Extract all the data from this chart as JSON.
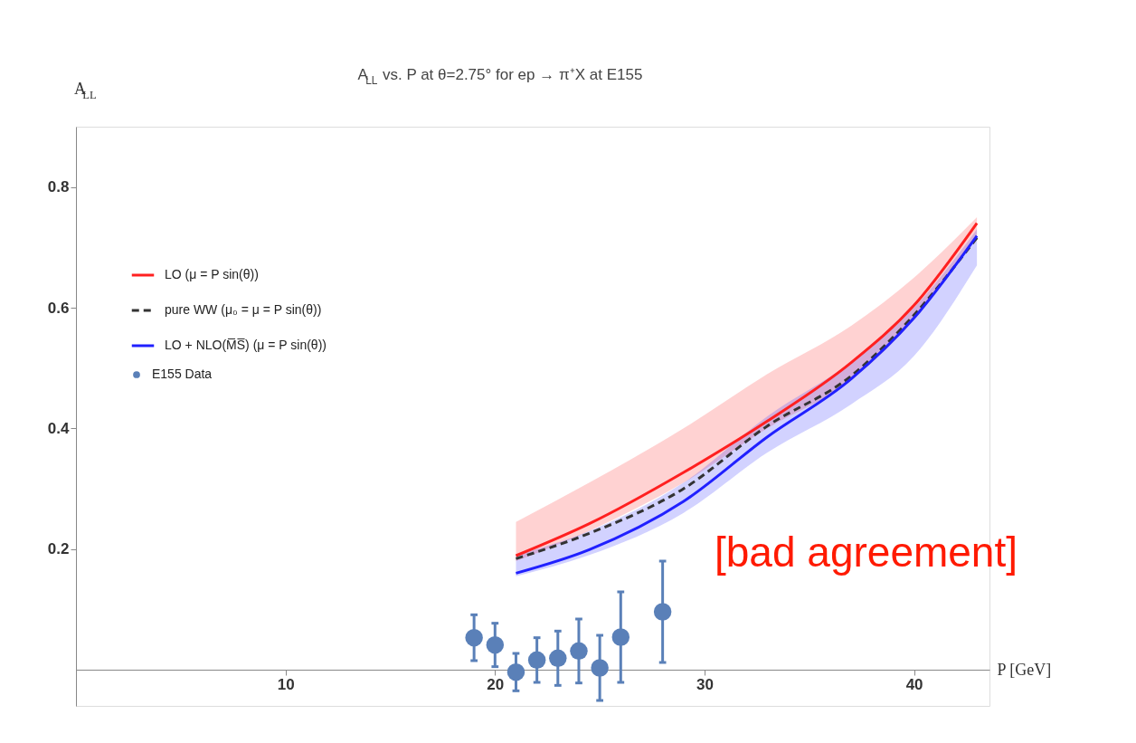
{
  "chart_data": {
    "type": "line",
    "title": "A$_{LL}$ vs. P at θ=2.75° for ep → π⁺X  at E155",
    "xlabel": "P [GeV]",
    "ylabel": "A$_{LL}$",
    "xlim": [
      0,
      43.6
    ],
    "ylim": [
      -0.06,
      0.9
    ],
    "xticks": [
      10,
      20,
      30,
      40
    ],
    "yticks": [
      0.2,
      0.4,
      0.6,
      0.8
    ],
    "grid": false,
    "legend": "top left",
    "annotations": [
      "[bad agreement]"
    ],
    "series": [
      {
        "name": "LO (μ = P sin(θ))",
        "color": "#ff2020",
        "line_style": "solid",
        "x": [
          21,
          24.5,
          29,
          33,
          37,
          40,
          43
        ],
        "values": [
          0.189,
          0.242,
          0.327,
          0.412,
          0.509,
          0.604,
          0.74
        ],
        "lower": [
          0.18,
          0.23,
          0.31,
          0.4,
          0.48,
          0.58,
          0.72
        ],
        "upper": [
          0.245,
          0.31,
          0.4,
          0.49,
          0.57,
          0.65,
          0.75
        ]
      },
      {
        "name": "pure WW (μ₀ = μ = P sin(θ))",
        "color": "#333333",
        "line_style": "dashed",
        "x": [
          21,
          24.5,
          29,
          33,
          37,
          40,
          43
        ],
        "values": [
          0.184,
          0.226,
          0.3,
          0.404,
          0.487,
          0.588,
          0.716
        ]
      },
      {
        "name": "LO + NLO(M̅S̅) (μ = P sin(θ))",
        "color": "#2020ff",
        "line_style": "solid",
        "x": [
          21,
          24.5,
          29,
          33,
          37,
          40,
          43
        ],
        "values": [
          0.16,
          0.199,
          0.279,
          0.386,
          0.482,
          0.583,
          0.719
        ],
        "lower": [
          0.155,
          0.19,
          0.26,
          0.36,
          0.44,
          0.52,
          0.67
        ],
        "upper": [
          0.19,
          0.23,
          0.31,
          0.42,
          0.51,
          0.6,
          0.73
        ]
      },
      {
        "name": "E155 Data",
        "type": "scatter",
        "color": "#5a80b8",
        "marker": "circle",
        "x": [
          19,
          20,
          21,
          22,
          23,
          24,
          25,
          26,
          28
        ],
        "values": [
          0.053,
          0.041,
          -0.004,
          0.016,
          0.019,
          0.031,
          0.003,
          0.054,
          0.096
        ],
        "errors": [
          0.038,
          0.036,
          0.031,
          0.037,
          0.045,
          0.053,
          0.054,
          0.075,
          0.084
        ]
      }
    ]
  }
}
